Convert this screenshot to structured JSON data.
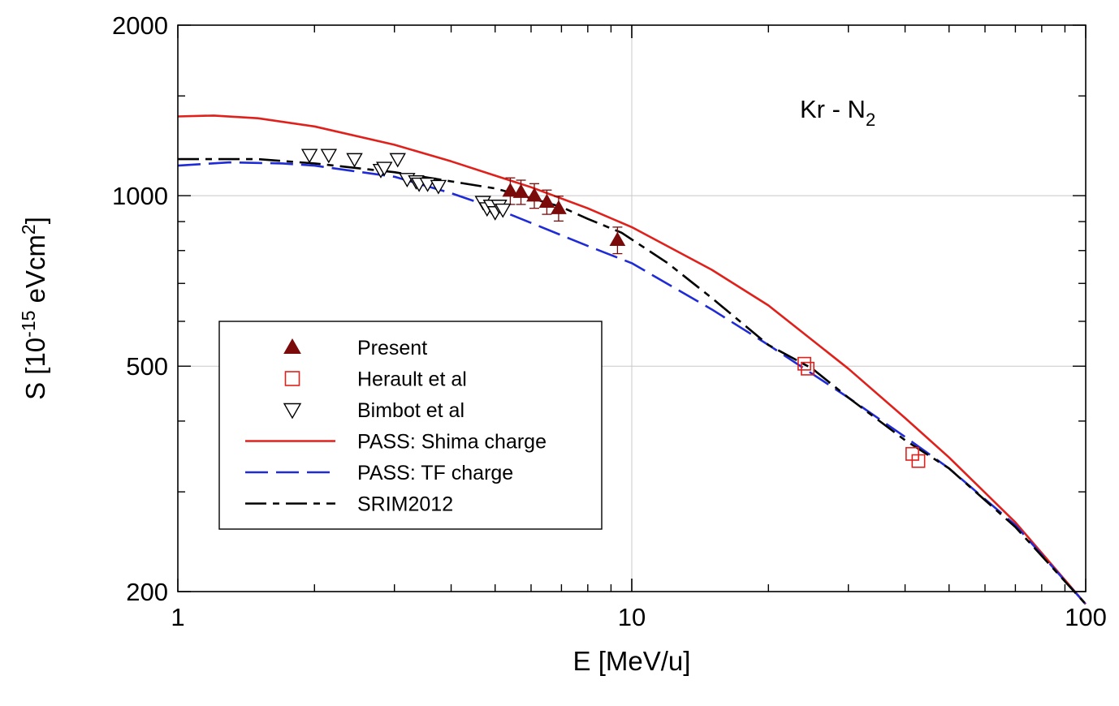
{
  "chart_data": {
    "type": "line",
    "annotation": {
      "main": "Kr - N",
      "sub": "2"
    },
    "xlabel": "E [MeV/u]",
    "ylabel": {
      "prefix": "S [10",
      "exp1": "-15",
      "mid": " eVcm",
      "exp2": "2",
      "suffix": "]"
    },
    "x_scale": "log",
    "y_scale": "log",
    "xlim": [
      1,
      100
    ],
    "ylim": [
      200,
      2000
    ],
    "x_ticks": [
      1,
      10,
      100
    ],
    "x_tick_labels": [
      "1",
      "10",
      "100"
    ],
    "y_ticks": [
      200,
      500,
      1000,
      2000
    ],
    "y_tick_labels": [
      "200",
      "500",
      "1000",
      "2000"
    ],
    "grid": true,
    "legend_position": "lower-left",
    "series": [
      {
        "name": "Present",
        "kind": "points",
        "marker": "triangle-up-filled",
        "color": "#7b0a0a",
        "x": [
          5.4,
          5.7,
          6.1,
          6.5,
          6.9,
          9.3
        ],
        "y": [
          1020,
          1015,
          1000,
          975,
          950,
          835
        ],
        "err": [
          55,
          50,
          50,
          48,
          48,
          45
        ]
      },
      {
        "name": "Herault et al",
        "kind": "points",
        "marker": "square-open",
        "color": "#e0201b",
        "x": [
          24.0,
          24.4,
          41.5,
          42.8
        ],
        "y": [
          505,
          495,
          350,
          340
        ]
      },
      {
        "name": "Bimbot et al",
        "kind": "points",
        "marker": "triangle-down-open",
        "color": "#000000",
        "x": [
          1.95,
          2.15,
          2.45,
          2.8,
          2.85,
          3.05,
          3.2,
          3.35,
          3.4,
          3.55,
          3.75,
          4.7,
          4.8,
          4.9,
          5.0,
          5.1,
          5.2
        ],
        "y": [
          1180,
          1180,
          1160,
          1110,
          1120,
          1160,
          1070,
          1060,
          1050,
          1050,
          1040,
          975,
          950,
          960,
          935,
          960,
          945
        ]
      },
      {
        "name": "PASS: Shima charge",
        "kind": "line",
        "dash": "solid",
        "color": "#e0201b",
        "x": [
          1,
          1.2,
          1.5,
          2,
          3,
          4,
          5,
          6,
          8,
          10,
          15,
          20,
          30,
          40,
          50,
          70,
          100
        ],
        "y": [
          1380,
          1385,
          1370,
          1325,
          1230,
          1150,
          1085,
          1035,
          950,
          880,
          740,
          640,
          495,
          405,
          345,
          265,
          190
        ]
      },
      {
        "name": "PASS: TF charge",
        "kind": "line",
        "dash": "dashed",
        "color": "#1f2bd6",
        "x": [
          1,
          1.3,
          1.7,
          2,
          3,
          4,
          5,
          6,
          8,
          10,
          15,
          20,
          30,
          40,
          50,
          70,
          100
        ],
        "y": [
          1130,
          1145,
          1140,
          1130,
          1080,
          1010,
          950,
          895,
          815,
          760,
          630,
          545,
          440,
          375,
          330,
          262,
          190
        ]
      },
      {
        "name": "SRIM2012",
        "kind": "line",
        "dash": "dash-dot",
        "color": "#000000",
        "x": [
          1,
          1.5,
          2,
          3,
          4,
          5,
          6,
          7,
          8,
          9.5,
          12,
          15,
          20,
          25,
          30,
          40,
          50,
          70,
          100
        ],
        "y": [
          1160,
          1160,
          1140,
          1100,
          1060,
          1030,
          990,
          955,
          910,
          860,
          760,
          660,
          545,
          495,
          440,
          370,
          330,
          260,
          190
        ]
      }
    ]
  }
}
